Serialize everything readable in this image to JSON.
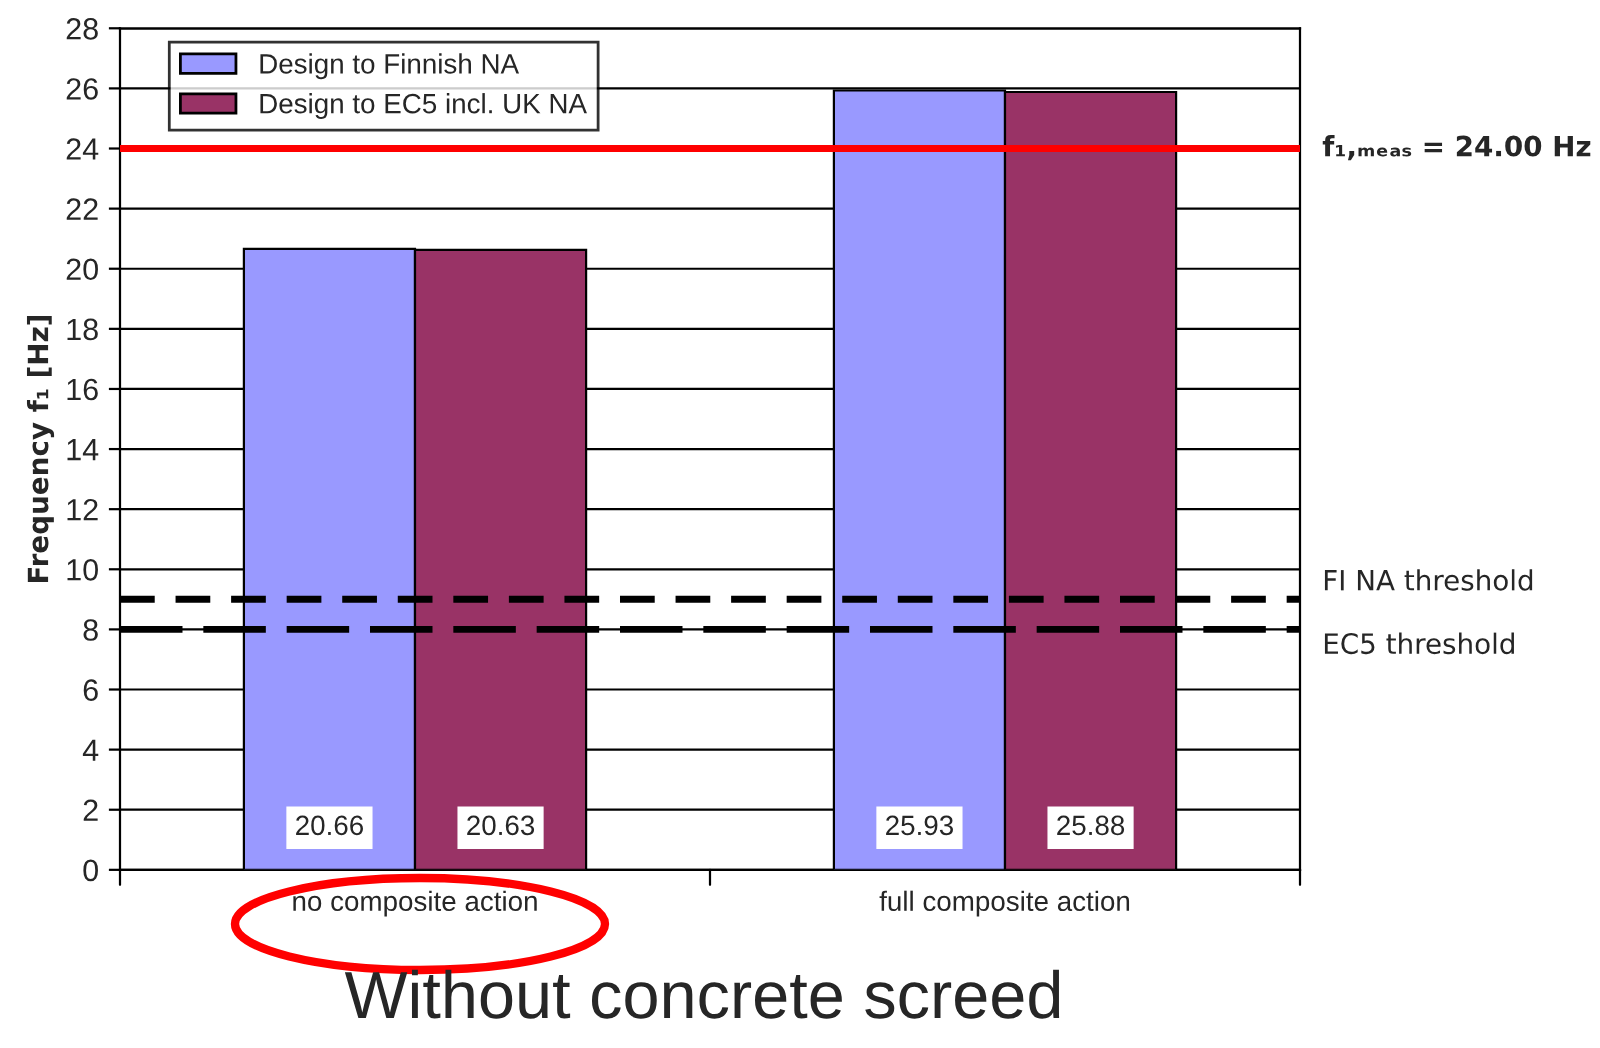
{
  "chart_data": {
    "type": "bar",
    "categories": [
      "no composite action",
      "full composite action"
    ],
    "series": [
      {
        "name": "Design to Finnish NA",
        "color": "#9999ff",
        "values": [
          20.66,
          25.93
        ],
        "value_labels": [
          "20.66",
          "25.93"
        ]
      },
      {
        "name": "Design to EC5 incl. UK NA",
        "color": "#993366",
        "values": [
          20.63,
          25.88
        ],
        "value_labels": [
          "20.63",
          "25.88"
        ]
      }
    ],
    "ylabel": "Frequency f₁ [Hz]",
    "ylim": [
      0,
      28
    ],
    "yticks": [
      0,
      2,
      4,
      6,
      8,
      10,
      12,
      14,
      16,
      18,
      20,
      22,
      24,
      26,
      28
    ],
    "grid": "y",
    "legend": "top left",
    "ref_lines": [
      {
        "axis": "y",
        "value": 24,
        "label": "f₁,ₘₑₐₛ = 24.00 Hz",
        "color": "#ff0000",
        "line_style": "solid"
      },
      {
        "axis": "y",
        "value": 9,
        "label": "FI NA threshold",
        "color": "#000000",
        "line_style": "dashed"
      },
      {
        "axis": "y",
        "value": 8,
        "label": "EC5 threshold",
        "color": "#000000",
        "line_style": "dashed"
      }
    ],
    "annotations": [
      "Without concrete screed"
    ]
  }
}
